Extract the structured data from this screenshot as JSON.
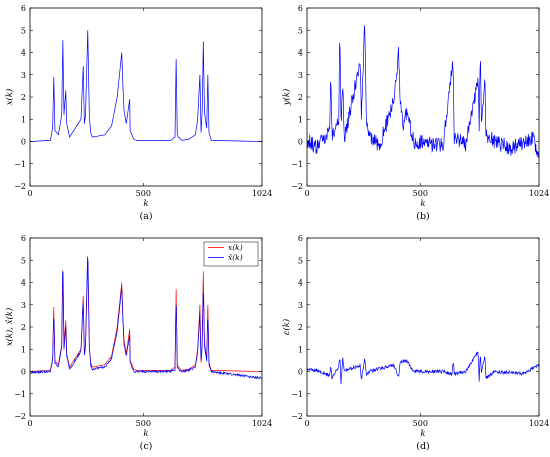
{
  "panels": [
    {
      "id": "a",
      "caption": "(a)",
      "xlabel": "k",
      "ylabel": "x(k)",
      "xticks": [
        "0",
        "500",
        "1024"
      ],
      "yticks": [
        "−2",
        "−1",
        "0",
        "1",
        "2",
        "3",
        "4",
        "5",
        "6"
      ],
      "colors": [
        "#0000ff"
      ]
    },
    {
      "id": "b",
      "caption": "(b)",
      "xlabel": "k",
      "ylabel": "y(k)",
      "xticks": [
        "0",
        "500",
        "1024"
      ],
      "yticks": [
        "−2",
        "−1",
        "0",
        "1",
        "2",
        "3",
        "4",
        "5",
        "6"
      ],
      "colors": [
        "#0000ff"
      ]
    },
    {
      "id": "c",
      "caption": "(c)",
      "xlabel": "k",
      "ylabel": "x(k), x̂(k)",
      "xticks": [
        "0",
        "500",
        "1024"
      ],
      "yticks": [
        "−2",
        "−1",
        "0",
        "1",
        "2",
        "3",
        "4",
        "5",
        "6"
      ],
      "legend": [
        "x(k)",
        "x̂(k)"
      ],
      "colors": [
        "#ff0000",
        "#0000ff"
      ]
    },
    {
      "id": "d",
      "caption": "(d)",
      "xlabel": "k",
      "ylabel": "ε(k)",
      "xticks": [
        "0",
        "500",
        "1024"
      ],
      "yticks": [
        "−2",
        "−1",
        "0",
        "1",
        "2",
        "3",
        "4",
        "5",
        "6"
      ],
      "colors": [
        "#0000ff"
      ]
    }
  ],
  "chart_data": [
    {
      "type": "line",
      "xlim": [
        0,
        1024
      ],
      "ylim": [
        -2,
        6
      ],
      "grid": false,
      "series": [
        {
          "color": "#0000ff",
          "x": [
            0,
            90,
            100,
            105,
            110,
            125,
            140,
            145,
            150,
            158,
            162,
            175,
            225,
            235,
            240,
            245,
            255,
            262,
            268,
            275,
            330,
            360,
            385,
            405,
            410,
            415,
            425,
            440,
            442,
            450,
            458,
            470,
            620,
            640,
            645,
            650,
            655,
            670,
            700,
            730,
            740,
            750,
            755,
            760,
            765,
            770,
            780,
            785,
            790,
            800,
            1024
          ],
          "y": [
            0,
            0.05,
            0.6,
            2.9,
            0.5,
            0.3,
            1.2,
            4.55,
            1.2,
            2.3,
            0.8,
            0.2,
            1.0,
            3.4,
            0.8,
            1.2,
            5.0,
            1.1,
            0.4,
            0.2,
            0.3,
            0.7,
            2.0,
            4.0,
            2.5,
            1.4,
            0.8,
            1.9,
            0.5,
            0.3,
            0.1,
            0.05,
            0.05,
            0.2,
            3.7,
            0.3,
            0.2,
            0.05,
            0.1,
            0.3,
            1.0,
            3.0,
            0.4,
            1.4,
            4.5,
            1.3,
            0.6,
            3.0,
            0.4,
            0.05,
            0
          ]
        }
      ]
    },
    {
      "type": "line",
      "xlim": [
        0,
        1024
      ],
      "ylim": [
        -2,
        6
      ],
      "grid": false,
      "series": [
        {
          "color": "#0000ff",
          "x": [
            0,
            40,
            100,
            105,
            110,
            140,
            145,
            150,
            158,
            165,
            235,
            240,
            255,
            262,
            275,
            320,
            385,
            405,
            410,
            425,
            440,
            470,
            600,
            645,
            650,
            700,
            755,
            760,
            765,
            770,
            785,
            790,
            830,
            900,
            1000,
            1024
          ],
          "y": [
            0.1,
            -0.3,
            0.5,
            3.2,
            0.3,
            1.0,
            5.3,
            0.8,
            2.5,
            0.1,
            3.6,
            0.9,
            5.6,
            1.0,
            0.2,
            -0.2,
            1.9,
            4.0,
            2.2,
            0.6,
            1.3,
            0.0,
            -0.2,
            3.7,
            0.2,
            -0.1,
            2.7,
            0.8,
            3.9,
            1.0,
            2.8,
            0.3,
            0.0,
            -0.3,
            0.2,
            -1.0
          ]
        }
      ]
    },
    {
      "type": "line",
      "xlim": [
        0,
        1024
      ],
      "ylim": [
        -2,
        6
      ],
      "grid": false,
      "legend_position": "top-right",
      "series": [
        {
          "name": "x(k)",
          "color": "#ff0000",
          "x": [
            0,
            90,
            100,
            105,
            110,
            125,
            140,
            145,
            150,
            158,
            162,
            175,
            225,
            235,
            240,
            245,
            255,
            262,
            268,
            275,
            330,
            360,
            385,
            405,
            410,
            415,
            425,
            440,
            442,
            450,
            458,
            470,
            620,
            640,
            645,
            650,
            655,
            670,
            700,
            730,
            740,
            750,
            755,
            760,
            765,
            770,
            780,
            785,
            790,
            800,
            1024
          ],
          "y": [
            0,
            0.05,
            0.6,
            2.9,
            0.5,
            0.3,
            1.2,
            4.55,
            1.2,
            2.3,
            0.8,
            0.2,
            1.0,
            3.4,
            0.8,
            1.2,
            5.0,
            1.1,
            0.4,
            0.2,
            0.3,
            0.7,
            2.0,
            4.0,
            2.5,
            1.4,
            0.8,
            1.9,
            0.5,
            0.3,
            0.1,
            0.05,
            0.05,
            0.2,
            3.7,
            0.3,
            0.2,
            0.05,
            0.1,
            0.3,
            1.0,
            3.0,
            0.4,
            1.4,
            4.5,
            1.3,
            0.6,
            3.0,
            0.4,
            0.05,
            0
          ]
        },
        {
          "name": "x̂(k)",
          "color": "#0000ff",
          "x": [
            0,
            90,
            100,
            105,
            110,
            125,
            140,
            145,
            150,
            158,
            162,
            175,
            225,
            235,
            240,
            245,
            255,
            262,
            268,
            275,
            330,
            360,
            385,
            405,
            410,
            415,
            425,
            440,
            442,
            450,
            458,
            470,
            620,
            640,
            645,
            650,
            655,
            670,
            700,
            730,
            740,
            750,
            755,
            760,
            765,
            770,
            780,
            785,
            790,
            800,
            1024
          ],
          "y": [
            -0.05,
            0.0,
            0.5,
            2.8,
            0.4,
            0.2,
            1.1,
            5.3,
            1.0,
            2.0,
            0.7,
            0.1,
            0.9,
            3.3,
            0.7,
            1.1,
            5.6,
            1.0,
            0.3,
            0.1,
            0.2,
            0.6,
            1.8,
            3.8,
            2.3,
            1.2,
            0.7,
            1.6,
            0.4,
            0.2,
            0.0,
            0.0,
            0.0,
            0.1,
            3.6,
            0.2,
            0.1,
            0.0,
            0.05,
            0.2,
            0.9,
            2.6,
            0.3,
            1.2,
            4.1,
            1.1,
            0.5,
            2.8,
            0.3,
            0.0,
            -0.3
          ]
        }
      ]
    },
    {
      "type": "line",
      "xlim": [
        0,
        1024
      ],
      "ylim": [
        -2,
        6
      ],
      "grid": false,
      "series": [
        {
          "color": "#0000ff",
          "x": [
            0,
            60,
            100,
            105,
            110,
            140,
            145,
            150,
            158,
            165,
            235,
            240,
            255,
            262,
            275,
            385,
            405,
            410,
            440,
            470,
            600,
            640,
            645,
            650,
            700,
            755,
            760,
            765,
            770,
            785,
            790,
            830,
            950,
            1024
          ],
          "y": [
            0.1,
            0.0,
            -0.2,
            0.3,
            -0.3,
            0.2,
            0.7,
            -0.5,
            0.6,
            0.0,
            0.3,
            -0.4,
            0.6,
            -0.2,
            0.0,
            0.3,
            -0.3,
            0.4,
            0.5,
            0.0,
            0.0,
            -0.1,
            0.5,
            -0.1,
            0.0,
            0.9,
            -0.5,
            0.9,
            0.0,
            0.7,
            -0.3,
            0.0,
            -0.1,
            0.3
          ]
        }
      ]
    }
  ]
}
